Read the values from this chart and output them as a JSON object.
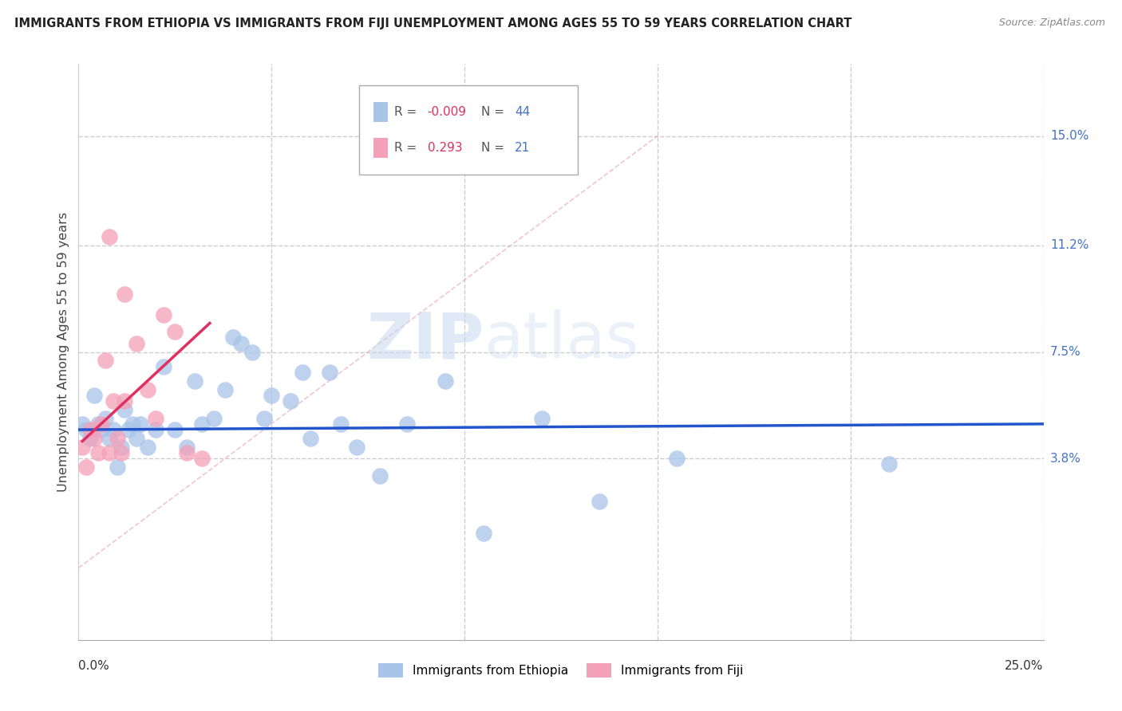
{
  "title": "IMMIGRANTS FROM ETHIOPIA VS IMMIGRANTS FROM FIJI UNEMPLOYMENT AMONG AGES 55 TO 59 YEARS CORRELATION CHART",
  "source": "Source: ZipAtlas.com",
  "ylabel": "Unemployment Among Ages 55 to 59 years",
  "ytick_labels": [
    "15.0%",
    "11.2%",
    "7.5%",
    "3.8%"
  ],
  "ytick_values": [
    0.15,
    0.112,
    0.075,
    0.038
  ],
  "xlim": [
    0.0,
    0.25
  ],
  "ylim": [
    -0.025,
    0.175
  ],
  "ethiopia_R": "-0.009",
  "ethiopia_N": "44",
  "fiji_R": "0.293",
  "fiji_N": "21",
  "ethiopia_color": "#a8c4e8",
  "fiji_color": "#f4a0b8",
  "ethiopia_line_color": "#2255cc",
  "fiji_line_color": "#e03060",
  "watermark_zip": "ZIP",
  "watermark_atlas": "atlas",
  "ethiopia_x": [
    0.001,
    0.002,
    0.003,
    0.004,
    0.005,
    0.006,
    0.007,
    0.008,
    0.009,
    0.01,
    0.011,
    0.012,
    0.013,
    0.014,
    0.015,
    0.016,
    0.018,
    0.02,
    0.022,
    0.025,
    0.028,
    0.03,
    0.032,
    0.035,
    0.038,
    0.04,
    0.042,
    0.045,
    0.048,
    0.05,
    0.055,
    0.058,
    0.06,
    0.065,
    0.068,
    0.072,
    0.078,
    0.085,
    0.095,
    0.105,
    0.12,
    0.135,
    0.155,
    0.21
  ],
  "ethiopia_y": [
    0.05,
    0.048,
    0.045,
    0.06,
    0.05,
    0.048,
    0.052,
    0.045,
    0.048,
    0.035,
    0.042,
    0.055,
    0.048,
    0.05,
    0.045,
    0.05,
    0.042,
    0.048,
    0.07,
    0.048,
    0.042,
    0.065,
    0.05,
    0.052,
    0.062,
    0.08,
    0.078,
    0.075,
    0.052,
    0.06,
    0.058,
    0.068,
    0.045,
    0.068,
    0.05,
    0.042,
    0.032,
    0.05,
    0.065,
    0.012,
    0.052,
    0.023,
    0.038,
    0.036
  ],
  "fiji_x": [
    0.001,
    0.002,
    0.003,
    0.004,
    0.005,
    0.006,
    0.007,
    0.008,
    0.009,
    0.01,
    0.011,
    0.012,
    0.015,
    0.018,
    0.02,
    0.022,
    0.025,
    0.028,
    0.032,
    0.008,
    0.012
  ],
  "fiji_y": [
    0.042,
    0.035,
    0.048,
    0.045,
    0.04,
    0.05,
    0.072,
    0.04,
    0.058,
    0.045,
    0.04,
    0.058,
    0.078,
    0.062,
    0.052,
    0.088,
    0.082,
    0.04,
    0.038,
    0.115,
    0.095
  ]
}
